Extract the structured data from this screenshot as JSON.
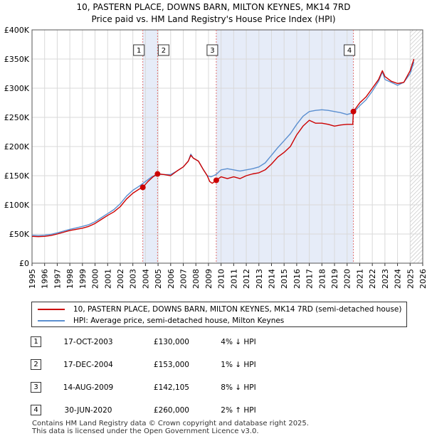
{
  "chart_data": {
    "type": "line",
    "title": "10, PASTERN PLACE, DOWNS BARN, MILTON KEYNES, MK14 7RD",
    "subtitle": "Price paid vs. HM Land Registry's House Price Index (HPI)",
    "xlim": [
      1995,
      2026
    ],
    "ylim": [
      0,
      400000
    ],
    "x_ticks": [
      1995,
      1996,
      1997,
      1998,
      1999,
      2000,
      2001,
      2002,
      2003,
      2004,
      2005,
      2006,
      2007,
      2008,
      2009,
      2010,
      2011,
      2012,
      2013,
      2014,
      2015,
      2016,
      2017,
      2018,
      2019,
      2020,
      2021,
      2022,
      2023,
      2024,
      2025,
      2026
    ],
    "y_ticks": [
      {
        "value": 0,
        "label": "£0"
      },
      {
        "value": 50000,
        "label": "£50K"
      },
      {
        "value": 100000,
        "label": "£100K"
      },
      {
        "value": 150000,
        "label": "£150K"
      },
      {
        "value": 200000,
        "label": "£200K"
      },
      {
        "value": 250000,
        "label": "£250K"
      },
      {
        "value": 300000,
        "label": "£300K"
      },
      {
        "value": 350000,
        "label": "£350K"
      },
      {
        "value": 400000,
        "label": "£400K"
      }
    ],
    "grid": true,
    "shaded_periods": [
      [
        2003.79,
        2004.96
      ],
      [
        2009.62,
        2020.5
      ]
    ],
    "forecast_hatch_from": 2025.0,
    "series": [
      {
        "name": "10, PASTERN PLACE, DOWNS BARN, MILTON KEYNES, MK14 7RD (semi-detached house)",
        "color": "#cc0000",
        "points": [
          [
            1995.0,
            46000
          ],
          [
            1995.5,
            45500
          ],
          [
            1996.0,
            46000
          ],
          [
            1996.5,
            47500
          ],
          [
            1997.0,
            50000
          ],
          [
            1997.5,
            53000
          ],
          [
            1998.0,
            56000
          ],
          [
            1998.5,
            58000
          ],
          [
            1999.0,
            60000
          ],
          [
            1999.5,
            63000
          ],
          [
            2000.0,
            68000
          ],
          [
            2000.5,
            75000
          ],
          [
            2001.0,
            82000
          ],
          [
            2001.5,
            88000
          ],
          [
            2002.0,
            97000
          ],
          [
            2002.5,
            110000
          ],
          [
            2003.0,
            120000
          ],
          [
            2003.5,
            127000
          ],
          [
            2003.79,
            130000
          ],
          [
            2004.2,
            140000
          ],
          [
            2004.6,
            148000
          ],
          [
            2004.96,
            153000
          ],
          [
            2005.5,
            152000
          ],
          [
            2006.0,
            150000
          ],
          [
            2006.5,
            158000
          ],
          [
            2007.0,
            165000
          ],
          [
            2007.4,
            175000
          ],
          [
            2007.6,
            185000
          ],
          [
            2007.8,
            180000
          ],
          [
            2008.2,
            175000
          ],
          [
            2008.6,
            160000
          ],
          [
            2008.9,
            150000
          ],
          [
            2009.1,
            140000
          ],
          [
            2009.3,
            137000
          ],
          [
            2009.62,
            142105
          ],
          [
            2010.0,
            148000
          ],
          [
            2010.5,
            145000
          ],
          [
            2011.0,
            148000
          ],
          [
            2011.5,
            145000
          ],
          [
            2012.0,
            150000
          ],
          [
            2012.5,
            153000
          ],
          [
            2013.0,
            155000
          ],
          [
            2013.5,
            160000
          ],
          [
            2014.0,
            170000
          ],
          [
            2014.5,
            182000
          ],
          [
            2015.0,
            190000
          ],
          [
            2015.5,
            200000
          ],
          [
            2016.0,
            220000
          ],
          [
            2016.5,
            235000
          ],
          [
            2017.0,
            245000
          ],
          [
            2017.5,
            240000
          ],
          [
            2018.0,
            240000
          ],
          [
            2018.5,
            238000
          ],
          [
            2019.0,
            235000
          ],
          [
            2019.5,
            237000
          ],
          [
            2020.0,
            238000
          ],
          [
            2020.45,
            238000
          ],
          [
            2020.5,
            260000
          ],
          [
            2021.0,
            275000
          ],
          [
            2021.5,
            285000
          ],
          [
            2022.0,
            300000
          ],
          [
            2022.5,
            315000
          ],
          [
            2022.8,
            330000
          ],
          [
            2023.0,
            320000
          ],
          [
            2023.5,
            312000
          ],
          [
            2024.0,
            308000
          ],
          [
            2024.5,
            310000
          ],
          [
            2025.0,
            330000
          ],
          [
            2025.3,
            350000
          ]
        ]
      },
      {
        "name": "HPI: Average price, semi-detached house, Milton Keynes",
        "color": "#5b8fd0",
        "points": [
          [
            1995.0,
            48000
          ],
          [
            1995.5,
            47500
          ],
          [
            1996.0,
            48000
          ],
          [
            1996.5,
            49500
          ],
          [
            1997.0,
            52000
          ],
          [
            1997.5,
            55000
          ],
          [
            1998.0,
            58000
          ],
          [
            1998.5,
            60500
          ],
          [
            1999.0,
            63000
          ],
          [
            1999.5,
            66000
          ],
          [
            2000.0,
            71000
          ],
          [
            2000.5,
            78000
          ],
          [
            2001.0,
            85000
          ],
          [
            2001.5,
            92000
          ],
          [
            2002.0,
            102000
          ],
          [
            2002.5,
            115000
          ],
          [
            2003.0,
            125000
          ],
          [
            2003.5,
            132000
          ],
          [
            2004.0,
            140000
          ],
          [
            2004.5,
            148000
          ],
          [
            2005.0,
            153000
          ],
          [
            2005.5,
            152000
          ],
          [
            2006.0,
            152000
          ],
          [
            2006.5,
            158000
          ],
          [
            2007.0,
            165000
          ],
          [
            2007.4,
            175000
          ],
          [
            2007.6,
            187000
          ],
          [
            2007.8,
            180000
          ],
          [
            2008.2,
            175000
          ],
          [
            2008.6,
            160000
          ],
          [
            2008.9,
            150000
          ],
          [
            2009.2,
            148000
          ],
          [
            2009.6,
            152000
          ],
          [
            2010.0,
            160000
          ],
          [
            2010.5,
            162000
          ],
          [
            2011.0,
            160000
          ],
          [
            2011.5,
            158000
          ],
          [
            2012.0,
            160000
          ],
          [
            2012.5,
            162000
          ],
          [
            2013.0,
            165000
          ],
          [
            2013.5,
            172000
          ],
          [
            2014.0,
            185000
          ],
          [
            2014.5,
            198000
          ],
          [
            2015.0,
            210000
          ],
          [
            2015.5,
            222000
          ],
          [
            2016.0,
            238000
          ],
          [
            2016.5,
            252000
          ],
          [
            2017.0,
            260000
          ],
          [
            2017.5,
            262000
          ],
          [
            2018.0,
            263000
          ],
          [
            2018.5,
            262000
          ],
          [
            2019.0,
            260000
          ],
          [
            2019.5,
            258000
          ],
          [
            2020.0,
            255000
          ],
          [
            2020.5,
            258000
          ],
          [
            2021.0,
            270000
          ],
          [
            2021.5,
            280000
          ],
          [
            2022.0,
            295000
          ],
          [
            2022.5,
            312000
          ],
          [
            2022.8,
            328000
          ],
          [
            2023.0,
            315000
          ],
          [
            2023.5,
            310000
          ],
          [
            2024.0,
            305000
          ],
          [
            2024.5,
            310000
          ],
          [
            2025.0,
            325000
          ],
          [
            2025.3,
            345000
          ]
        ]
      }
    ],
    "sale_markers": [
      {
        "label": "1",
        "x": 2003.79,
        "y": 130000
      },
      {
        "label": "2",
        "x": 2004.96,
        "y": 153000
      },
      {
        "label": "3",
        "x": 2009.62,
        "y": 142105
      },
      {
        "label": "4",
        "x": 2020.5,
        "y": 260000
      }
    ]
  },
  "legend": {
    "items": [
      {
        "label": "10, PASTERN PLACE, DOWNS BARN, MILTON KEYNES, MK14 7RD (semi-detached house)",
        "color": "#cc0000"
      },
      {
        "label": "HPI: Average price, semi-detached house, Milton Keynes",
        "color": "#5b8fd0"
      }
    ]
  },
  "sales": [
    {
      "num": "1",
      "date": "17-OCT-2003",
      "price": "£130,000",
      "hpi": "4% ↓ HPI"
    },
    {
      "num": "2",
      "date": "17-DEC-2004",
      "price": "£153,000",
      "hpi": "1% ↓ HPI"
    },
    {
      "num": "3",
      "date": "14-AUG-2009",
      "price": "£142,105",
      "hpi": "8% ↓ HPI"
    },
    {
      "num": "4",
      "date": "30-JUN-2020",
      "price": "£260,000",
      "hpi": "2% ↑ HPI"
    }
  ],
  "footer": {
    "line1": "Contains HM Land Registry data © Crown copyright and database right 2025.",
    "line2": "This data is licensed under the Open Government Licence v3.0."
  }
}
